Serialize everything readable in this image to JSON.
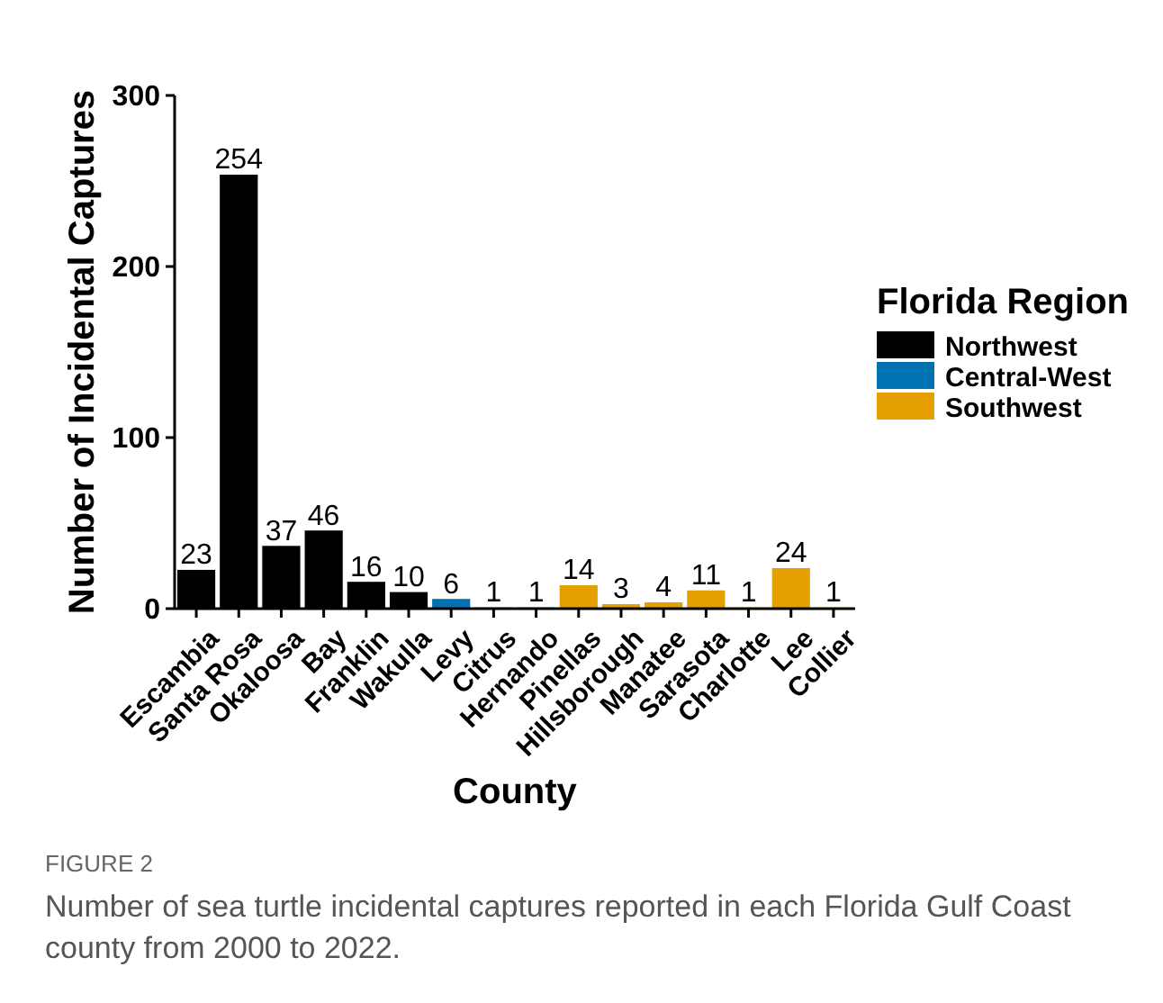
{
  "chart_data": {
    "type": "bar",
    "xlabel": "County",
    "ylabel": "Number of Incidental Captures",
    "legend_title": "Florida Region",
    "legend": "right",
    "data_labels": true,
    "categories": [
      "Escambia",
      "Santa Rosa",
      "Okaloosa",
      "Bay",
      "Franklin",
      "Wakulla",
      "Levy",
      "Citrus",
      "Hernando",
      "Pinellas",
      "Hillsborough",
      "Manatee",
      "Sarasota",
      "Charlotte",
      "Lee",
      "Collier"
    ],
    "series": [
      {
        "name": "Northwest",
        "color": "#000000",
        "values": [
          23,
          254,
          37,
          46,
          16,
          10,
          null,
          null,
          null,
          null,
          null,
          null,
          null,
          null,
          null,
          null
        ]
      },
      {
        "name": "Central-West",
        "color": "#0072b2",
        "values": [
          null,
          null,
          null,
          null,
          null,
          null,
          6,
          1,
          1,
          null,
          null,
          null,
          null,
          null,
          null,
          null
        ]
      },
      {
        "name": "Southwest",
        "color": "#e69f00",
        "values": [
          null,
          null,
          null,
          null,
          null,
          null,
          null,
          null,
          null,
          14,
          3,
          4,
          11,
          1,
          24,
          1
        ]
      }
    ],
    "ylim": [
      0,
      300
    ],
    "yticks": [
      0,
      100,
      200,
      300
    ],
    "annotations": [
      "FIGURE 2",
      "Number of sea turtle incidental captures reported in each Florida Gulf Coast county from 2000 to 2022."
    ]
  }
}
